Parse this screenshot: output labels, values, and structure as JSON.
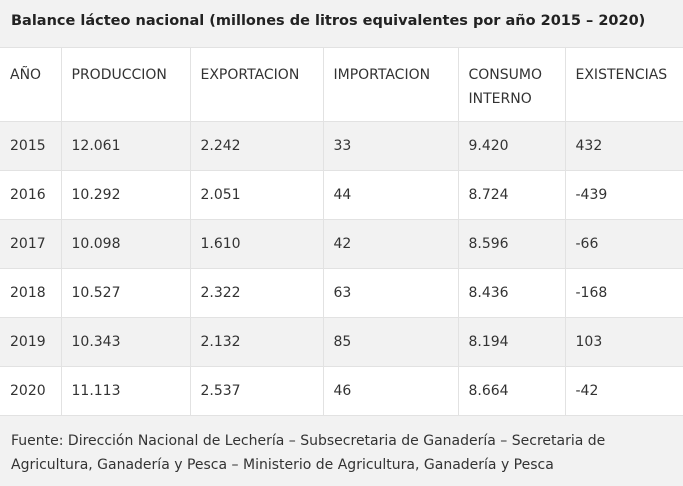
{
  "title": "Balance lácteo nacional (millones de litros equivalentes por año 2015 – 2020)",
  "columns": [
    "AÑO",
    "PRODUCCION",
    "EXPORTACION",
    "IMPORTACION",
    "CONSUMO INTERNO",
    "EXISTENCIAS"
  ],
  "rows": [
    [
      "2015",
      "12.061",
      "2.242",
      "33",
      "9.420",
      "432"
    ],
    [
      "2016",
      "10.292",
      "2.051",
      "44",
      "8.724",
      "-439"
    ],
    [
      "2017",
      "10.098",
      "1.610",
      "42",
      "8.596",
      "-66"
    ],
    [
      "2018",
      "10.527",
      "2.322",
      "63",
      "8.436",
      "-168"
    ],
    [
      "2019",
      "10.343",
      "2.132",
      "85",
      "8.194",
      "103"
    ],
    [
      "2020",
      "11.113",
      "2.537",
      "46",
      "8.664",
      "-42"
    ]
  ],
  "source": "Fuente: Dirección Nacional de Lechería – Subsecretaria de Ganadería – Secretaria de Agricultura, Ganadería y Pesca – Ministerio de Agricultura, Ganadería y Pesca",
  "chart_data": {
    "type": "table",
    "title": "Balance lácteo nacional (millones de litros equivalentes por año 2015 – 2020)",
    "columns": [
      "AÑO",
      "PRODUCCION",
      "EXPORTACION",
      "IMPORTACION",
      "CONSUMO INTERNO",
      "EXISTENCIAS"
    ],
    "rows": [
      [
        "2015",
        "12.061",
        "2.242",
        "33",
        "9.420",
        "432"
      ],
      [
        "2016",
        "10.292",
        "2.051",
        "44",
        "8.724",
        "-439"
      ],
      [
        "2017",
        "10.098",
        "1.610",
        "42",
        "8.596",
        "-66"
      ],
      [
        "2018",
        "10.527",
        "2.322",
        "63",
        "8.436",
        "-168"
      ],
      [
        "2019",
        "10.343",
        "2.132",
        "85",
        "8.194",
        "103"
      ],
      [
        "2020",
        "11.113",
        "2.537",
        "46",
        "8.664",
        "-42"
      ]
    ]
  }
}
